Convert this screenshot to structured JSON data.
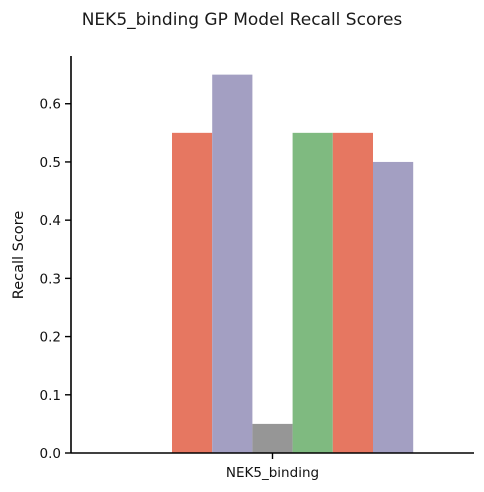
{
  "chart_data": {
    "type": "bar",
    "title": "NEK5_binding GP Model Recall Scores",
    "xlabel": "",
    "ylabel": "Recall Score",
    "categories": [
      "NEK5_binding"
    ],
    "ylim": [
      0,
      0.682
    ],
    "yticks": [
      "0.0",
      "0.1",
      "0.2",
      "0.3",
      "0.4",
      "0.5",
      "0.6"
    ],
    "grid": false,
    "legend": "none",
    "bars": [
      {
        "value": 0.0,
        "color": "#8dd3c7"
      },
      {
        "value": 0.55,
        "color": "#e67761"
      },
      {
        "value": 0.65,
        "color": "#a39fc2"
      },
      {
        "value": 0.05,
        "color": "#969696"
      },
      {
        "value": 0.55,
        "color": "#7fba80"
      },
      {
        "value": 0.55,
        "color": "#e67761"
      },
      {
        "value": 0.5,
        "color": "#a39fc2"
      }
    ]
  }
}
